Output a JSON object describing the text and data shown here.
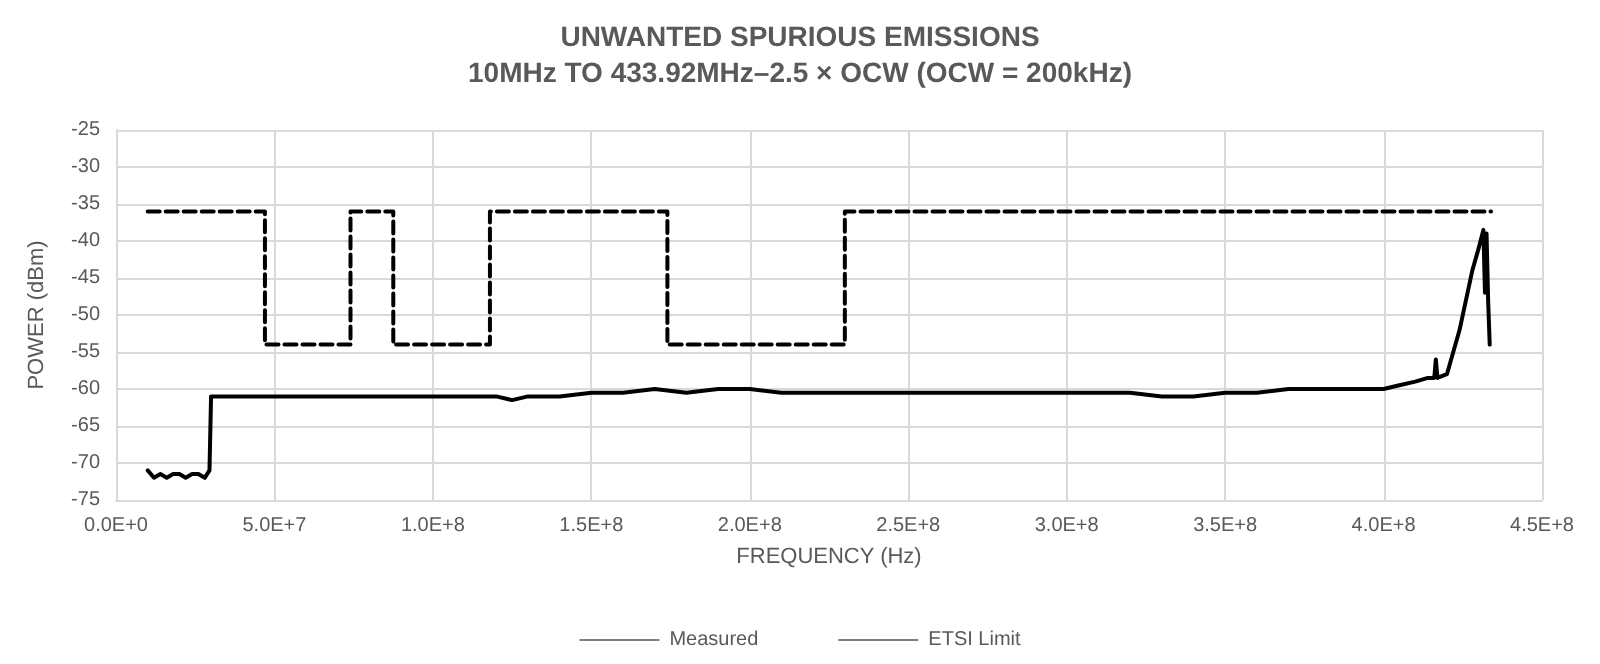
{
  "chart_data": {
    "type": "line",
    "title": "UNWANTED SPURIOUS EMISSIONS",
    "subtitle": "10MHz TO 433.92MHz–2.5 × OCW (OCW = 200kHz)",
    "xlabel": "FREQUENCY (Hz)",
    "ylabel": "POWER (dBm)",
    "xlim": [
      0,
      450000000
    ],
    "ylim": [
      -75,
      -25
    ],
    "xticks": [
      {
        "value": 0,
        "label": "0.0E+0"
      },
      {
        "value": 50000000,
        "label": "5.0E+7"
      },
      {
        "value": 100000000,
        "label": "1.0E+8"
      },
      {
        "value": 150000000,
        "label": "1.5E+8"
      },
      {
        "value": 200000000,
        "label": "2.0E+8"
      },
      {
        "value": 250000000,
        "label": "2.5E+8"
      },
      {
        "value": 300000000,
        "label": "3.0E+8"
      },
      {
        "value": 350000000,
        "label": "3.5E+8"
      },
      {
        "value": 400000000,
        "label": "4.0E+8"
      },
      {
        "value": 450000000,
        "label": "4.5E+8"
      }
    ],
    "yticks": [
      -75,
      -70,
      -65,
      -60,
      -55,
      -50,
      -45,
      -40,
      -35,
      -30,
      -25
    ],
    "grid": true,
    "legend": "bottom",
    "marker": "none",
    "series": [
      {
        "name": "Measured",
        "color": "#000000",
        "line_style": "solid",
        "x": [
          10000000,
          12000000,
          14000000,
          16000000,
          18000000,
          20000000,
          22000000,
          24000000,
          26000000,
          28000000,
          29500000,
          30000000,
          32000000,
          40000000,
          50000000,
          60000000,
          70000000,
          80000000,
          90000000,
          100000000,
          110000000,
          120000000,
          125000000,
          130000000,
          140000000,
          150000000,
          160000000,
          170000000,
          180000000,
          190000000,
          200000000,
          210000000,
          220000000,
          230000000,
          240000000,
          250000000,
          260000000,
          270000000,
          280000000,
          290000000,
          300000000,
          310000000,
          320000000,
          330000000,
          340000000,
          350000000,
          360000000,
          370000000,
          380000000,
          390000000,
          400000000,
          405000000,
          410000000,
          414000000,
          416000000,
          416500000,
          417000000,
          420000000,
          424000000,
          428000000,
          430000000,
          431500000,
          432000000,
          432500000,
          433000000,
          433500000
        ],
        "values": [
          -71,
          -72,
          -71.5,
          -72,
          -71.5,
          -71.5,
          -72,
          -71.5,
          -71.5,
          -72,
          -71,
          -61,
          -61,
          -61,
          -61,
          -61,
          -61,
          -61,
          -61,
          -61,
          -61,
          -61,
          -61.5,
          -61,
          -61,
          -60.5,
          -60.5,
          -60,
          -60.5,
          -60,
          -60,
          -60.5,
          -60.5,
          -60.5,
          -60.5,
          -60.5,
          -60.5,
          -60.5,
          -60.5,
          -60.5,
          -60.5,
          -60.5,
          -60.5,
          -61,
          -61,
          -60.5,
          -60.5,
          -60,
          -60,
          -60,
          -60,
          -59.5,
          -59,
          -58.5,
          -58.5,
          -56,
          -58.5,
          -58,
          -52,
          -44,
          -41,
          -38.5,
          -47,
          -39,
          -48,
          -54
        ]
      },
      {
        "name": "ETSI Limit",
        "color": "#000000",
        "line_style": "dashed",
        "x": [
          10000000,
          47000000,
          47000000,
          74000000,
          74000000,
          87500000,
          87500000,
          118000000,
          118000000,
          174000000,
          174000000,
          230000000,
          230000000,
          433920000
        ],
        "values": [
          -36,
          -36,
          -54,
          -54,
          -36,
          -36,
          -54,
          -54,
          -36,
          -36,
          -54,
          -54,
          -36,
          -36
        ]
      }
    ]
  }
}
